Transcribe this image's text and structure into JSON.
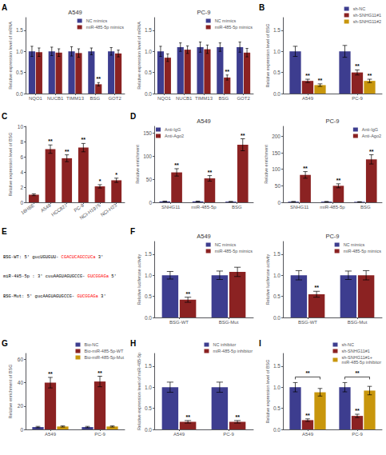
{
  "chart_data": [
    {
      "type": "bar",
      "title": "A549",
      "categories": [
        "NQO1",
        "NUCB1",
        "TIMM13",
        "BSG",
        "GOT2"
      ],
      "series": [
        {
          "name": "NC mimics",
          "color": "#3D3D8F",
          "values": [
            1.0,
            1.0,
            1.0,
            1.0,
            1.0
          ],
          "errors": [
            0.12,
            0.1,
            0.11,
            0.08,
            0.09
          ]
        },
        {
          "name": "miR-485-5p mimics",
          "color": "#8B2222",
          "values": [
            0.98,
            0.97,
            0.96,
            0.22,
            0.95
          ],
          "errors": [
            0.1,
            0.09,
            0.1,
            0.04,
            0.08
          ],
          "annotations": [
            null,
            null,
            null,
            "**",
            null
          ]
        }
      ],
      "ylabel": "Relative expression level of mRNA",
      "ylim": [
        0,
        1.8
      ],
      "yticks": [
        {
          "value": 0,
          "label": "0.0"
        },
        0.5,
        {
          "value": 1,
          "label": "1.0"
        },
        1.5
      ],
      "grid": false,
      "legend": "upper right",
      "annotations": [
        "A"
      ]
    },
    {
      "type": "bar",
      "title": "PC-9",
      "categories": [
        "NQO1",
        "NUCB1",
        "TIMM13",
        "BSG",
        "GOT2"
      ],
      "series": [
        {
          "name": "NC mimics",
          "color": "#3D3D8F",
          "values": [
            1.0,
            1.1,
            1.1,
            1.1,
            1.1
          ],
          "errors": [
            0.12,
            0.1,
            0.12,
            0.1,
            0.12
          ]
        },
        {
          "name": "miR-485-5p mimics",
          "color": "#8B2222",
          "values": [
            0.85,
            1.04,
            1.05,
            0.38,
            0.97
          ],
          "errors": [
            0.09,
            0.09,
            0.1,
            0.06,
            0.1
          ],
          "annotations": [
            null,
            null,
            null,
            "**",
            null
          ]
        }
      ],
      "ylabel": "Relative expression level of mRNA",
      "ylim": [
        0,
        1.8
      ],
      "yticks": [
        {
          "value": 0,
          "label": "0.0"
        },
        0.5,
        {
          "value": 1,
          "label": "1.0"
        },
        1.5
      ],
      "grid": false,
      "legend": "upper right"
    },
    {
      "type": "bar",
      "categories": [
        "A549",
        "PC-9"
      ],
      "series": [
        {
          "name": "sh-NC",
          "color": "#3D3D8F",
          "values": [
            1.0,
            1.0
          ],
          "errors": [
            0.12,
            0.14
          ]
        },
        {
          "name": "sh-SNHG11#1",
          "color": "#8B2222",
          "values": [
            0.3,
            0.5
          ],
          "errors": [
            0.04,
            0.06
          ],
          "annotations": [
            "**",
            "**"
          ]
        },
        {
          "name": "sh-SNHG11#2",
          "color": "#C8960C",
          "values": [
            0.2,
            0.3
          ],
          "errors": [
            0.03,
            0.04
          ],
          "annotations": [
            "**",
            "**"
          ]
        }
      ],
      "ylabel": "Relative expression level of BSG",
      "ylim": [
        0,
        1.8
      ],
      "yticks": [
        {
          "value": 0,
          "label": "0.0"
        },
        0.5,
        {
          "value": 1,
          "label": "1.0"
        },
        1.5
      ],
      "grid": false,
      "legend": "upper right",
      "annotations": [
        "B"
      ]
    },
    {
      "type": "bar",
      "categories": [
        "16HBE",
        "A549",
        "HCC827",
        "PC-9",
        "NCI-H1975",
        "NCI-H23"
      ],
      "series": [
        {
          "color": "#8B2222",
          "values": [
            1.0,
            7.0,
            5.8,
            7.2,
            2.1,
            2.9
          ],
          "errors": [
            0.12,
            0.55,
            0.45,
            0.55,
            0.22,
            0.28
          ],
          "annotations": [
            null,
            "**",
            "**",
            "**",
            "*",
            "*"
          ]
        }
      ],
      "ylabel": "Relative expression level of BSG",
      "ylim": [
        0,
        10
      ],
      "yticks": [
        0,
        2,
        4,
        6,
        8,
        10
      ],
      "grid": false,
      "annotations": [
        "C"
      ]
    },
    {
      "type": "bar",
      "title": "A549",
      "categories": [
        "SNHG11",
        "miR-485-5p",
        "BSG"
      ],
      "series": [
        {
          "name": "Anti-IgG",
          "color": "#3D3D8F",
          "values": [
            2.0,
            2.0,
            1.5
          ],
          "errors": [
            0.5,
            0.5,
            0.4
          ]
        },
        {
          "name": "Anti-Ago2",
          "color": "#8B2222",
          "values": [
            65.0,
            52.0,
            125.0
          ],
          "errors": [
            8.0,
            6.0,
            13.0
          ],
          "annotations": [
            "**",
            "**",
            "**"
          ]
        }
      ],
      "ylabel": "Relative enrichment",
      "ylim": [
        0,
        165
      ],
      "yticks": [
        0,
        50,
        100,
        150
      ],
      "grid": false,
      "legend": "upper left",
      "annotations": [
        "D"
      ]
    },
    {
      "type": "bar",
      "title": "PC-9",
      "categories": [
        "SNHG11",
        "miR-485-5p",
        "BSG"
      ],
      "series": [
        {
          "name": "Anti-IgG",
          "color": "#3D3D8F",
          "values": [
            2.0,
            2.0,
            1.5
          ],
          "errors": [
            0.5,
            0.5,
            0.4
          ]
        },
        {
          "name": "Anti-Ago2",
          "color": "#8B2222",
          "values": [
            83.0,
            50.0,
            130.0
          ],
          "errors": [
            10.0,
            6.0,
            14.0
          ],
          "annotations": [
            "**",
            "**",
            "**"
          ]
        }
      ],
      "ylabel": "Relative enrichment",
      "ylim": [
        0,
        230
      ],
      "yticks": [
        0,
        50,
        100,
        150,
        200
      ],
      "grid": false,
      "legend": "upper right"
    },
    {
      "type": "text",
      "annotations": [
        "E",
        [
          {
            "text": "BSG-WT: 5' gucUGUGUU- ",
            "color": "black"
          },
          {
            "text": "CGACUCAGCCUCa",
            "color": "red"
          },
          {
            "text": " 3'",
            "color": "black"
          }
        ],
        [
          {
            "text": "miR-485-5p : 3' cuuAAGUAGUGCCG- ",
            "color": "black"
          },
          {
            "text": "GUCGGAGa",
            "color": "red"
          },
          {
            "text": " 5'",
            "color": "black"
          }
        ],
        [
          {
            "text": "BSG-Mut: 5' gucAAGUAGUGCCG- ",
            "color": "black"
          },
          {
            "text": "GUCGGAGa",
            "color": "red"
          },
          {
            "text": " 3'",
            "color": "black"
          }
        ]
      ]
    },
    {
      "type": "bar",
      "title": "A549",
      "categories": [
        "BSG-WT",
        "BSG-Mut"
      ],
      "series": [
        {
          "name": "NC mimics",
          "color": "#3D3D8F",
          "values": [
            1.0,
            1.0
          ],
          "errors": [
            0.09,
            0.1
          ]
        },
        {
          "name": "miR-485-5p mimics",
          "color": "#8B2222",
          "values": [
            0.42,
            1.08
          ],
          "errors": [
            0.06,
            0.11
          ],
          "annotations": [
            "**",
            null
          ]
        }
      ],
      "ylabel": "Relative luciferase activity",
      "ylim": [
        0,
        1.8
      ],
      "yticks": [
        {
          "value": 0,
          "label": "0.0"
        },
        0.5,
        {
          "value": 1,
          "label": "1.0"
        },
        1.5
      ],
      "grid": false,
      "legend": "upper right",
      "annotations": [
        "F"
      ]
    },
    {
      "type": "bar",
      "title": "PC-9",
      "categories": [
        "BSG-WT",
        "BSG-Mut"
      ],
      "series": [
        {
          "name": "NC mimics",
          "color": "#3D3D8F",
          "values": [
            1.0,
            1.0
          ],
          "errors": [
            0.11,
            0.1
          ]
        },
        {
          "name": "miR-485-5p mimics",
          "color": "#8B2222",
          "values": [
            0.55,
            1.0
          ],
          "errors": [
            0.07,
            0.11
          ],
          "annotations": [
            "**",
            null
          ]
        }
      ],
      "ylabel": "Relative luciferase activity",
      "ylim": [
        0,
        1.8
      ],
      "yticks": [
        {
          "value": 0,
          "label": "0.0"
        },
        0.5,
        {
          "value": 1,
          "label": "1.0"
        },
        1.5
      ],
      "grid": false,
      "legend": "upper right"
    },
    {
      "type": "bar",
      "categories": [
        "A549",
        "PC-9"
      ],
      "series": [
        {
          "name": "Bio-NC",
          "color": "#3D3D8F",
          "values": [
            2.0,
            2.0
          ],
          "errors": [
            0.6,
            0.6
          ]
        },
        {
          "name": "Bio-miR-485-5p-WT",
          "color": "#8B2222",
          "values": [
            40.0,
            41.0
          ],
          "errors": [
            4.5,
            4.5
          ],
          "annotations": [
            "**",
            "**"
          ]
        },
        {
          "name": "Bio-miR-485-5p-Mut",
          "color": "#C8960C",
          "values": [
            2.5,
            2.5
          ],
          "errors": [
            0.5,
            0.5
          ]
        }
      ],
      "ylabel": "Relative enrichment of BSG",
      "ylim": [
        0,
        65
      ],
      "yticks": [
        0,
        20,
        40,
        60
      ],
      "grid": false,
      "legend": "upper right",
      "annotations": [
        "G"
      ]
    },
    {
      "type": "bar",
      "categories": [
        "A549",
        "PC-9"
      ],
      "series": [
        {
          "name": "NC inhibitor",
          "color": "#3D3D8F",
          "values": [
            1.0,
            1.0
          ],
          "errors": [
            0.12,
            0.12
          ]
        },
        {
          "name": "miR-485-5p inhibitor",
          "color": "#8B2222",
          "values": [
            0.18,
            0.18
          ],
          "errors": [
            0.03,
            0.03
          ],
          "annotations": [
            "**",
            "**"
          ]
        }
      ],
      "ylabel": "Relative expression level of miR-485-5p",
      "ylim": [
        0,
        1.8
      ],
      "yticks": [
        {
          "value": 0,
          "label": "0.0"
        },
        0.5,
        {
          "value": 1,
          "label": "1.0"
        },
        1.5
      ],
      "grid": false,
      "legend": "upper right",
      "annotations": [
        "H"
      ]
    },
    {
      "type": "bar",
      "categories": [
        "A549",
        "PC-9"
      ],
      "series": [
        {
          "name": "sh-NC",
          "color": "#3D3D8F",
          "values": [
            1.0,
            1.0
          ],
          "errors": [
            0.11,
            0.11
          ]
        },
        {
          "name": "sh-SNHG11#1",
          "color": "#8B2222",
          "values": [
            0.22,
            0.32
          ],
          "errors": [
            0.03,
            0.04
          ],
          "annotations": [
            "**",
            "**"
          ]
        },
        {
          "name": "sh-SNHG11#1+\nmiR-485-5p inhibitor",
          "color": "#C8960C",
          "values": [
            0.88,
            0.92
          ],
          "errors": [
            0.09,
            0.1
          ]
        }
      ],
      "ylabel": "Relative expression level of BSG",
      "ylim": [
        0,
        1.8
      ],
      "yticks": [
        {
          "value": 0,
          "label": "0.0"
        },
        0.5,
        {
          "value": 1,
          "label": "1.0"
        },
        1.5
      ],
      "grid": false,
      "legend": "upper right",
      "annotations": [
        "I",
        {
          "text": "**",
          "category": "A549",
          "between": [
            "sh-NC",
            "sh-SNHG11#1+\nmiR-485-5p inhibitor"
          ]
        },
        {
          "text": "**",
          "category": "PC-9",
          "between": [
            "sh-NC",
            "sh-SNHG11#1+\nmiR-485-5p inhibitor"
          ]
        }
      ]
    }
  ]
}
